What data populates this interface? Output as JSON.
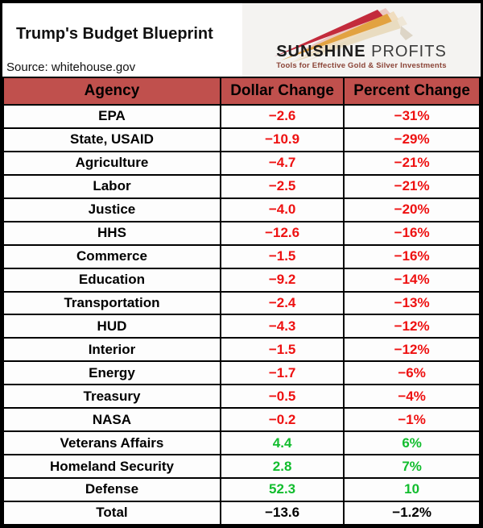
{
  "header": {
    "title": "Trump's Budget Blueprint",
    "source": "Source: whitehouse.gov",
    "logo": {
      "brand_primary": "SUNSHINE",
      "brand_secondary": " PROFITS",
      "tagline": "Tools for Effective Gold & Silver Investments"
    }
  },
  "colors": {
    "header_row_bg": "#c0504d",
    "negative_value": "#ee1111",
    "positive_value": "#12bd2e",
    "total_value": "#000000",
    "logo_panel_bg": "#f4f3f1",
    "logo_tagline": "#8b4437",
    "logo_ray_red": "#c32b3c",
    "logo_ray_gold": "#e2a241",
    "logo_ray_cream": "#e9dcc0"
  },
  "table": {
    "columns": [
      "Agency",
      "Dollar Change",
      "Percent Change"
    ],
    "rows": [
      {
        "agency": "EPA",
        "dollar": "−2.6",
        "percent": "−31%",
        "type": "cut"
      },
      {
        "agency": "State, USAID",
        "dollar": "−10.9",
        "percent": "−29%",
        "type": "cut"
      },
      {
        "agency": "Agriculture",
        "dollar": "−4.7",
        "percent": "−21%",
        "type": "cut"
      },
      {
        "agency": "Labor",
        "dollar": "−2.5",
        "percent": "−21%",
        "type": "cut"
      },
      {
        "agency": "Justice",
        "dollar": "−4.0",
        "percent": "−20%",
        "type": "cut"
      },
      {
        "agency": "HHS",
        "dollar": "−12.6",
        "percent": "−16%",
        "type": "cut"
      },
      {
        "agency": "Commerce",
        "dollar": "−1.5",
        "percent": "−16%",
        "type": "cut"
      },
      {
        "agency": "Education",
        "dollar": "−9.2",
        "percent": "−14%",
        "type": "cut"
      },
      {
        "agency": "Transportation",
        "dollar": "−2.4",
        "percent": "−13%",
        "type": "cut"
      },
      {
        "agency": "HUD",
        "dollar": "−4.3",
        "percent": "−12%",
        "type": "cut"
      },
      {
        "agency": "Interior",
        "dollar": "−1.5",
        "percent": "−12%",
        "type": "cut"
      },
      {
        "agency": "Energy",
        "dollar": "−1.7",
        "percent": "−6%",
        "type": "cut"
      },
      {
        "agency": "Treasury",
        "dollar": "−0.5",
        "percent": "−4%",
        "type": "cut"
      },
      {
        "agency": "NASA",
        "dollar": "−0.2",
        "percent": "−1%",
        "type": "cut"
      },
      {
        "agency": "Veterans Affairs",
        "dollar": "4.4",
        "percent": "6%",
        "type": "gain"
      },
      {
        "agency": "Homeland Security",
        "dollar": "2.8",
        "percent": "7%",
        "type": "gain"
      },
      {
        "agency": "Defense",
        "dollar": "52.3",
        "percent": "10",
        "type": "gain"
      },
      {
        "agency": "Total",
        "dollar": "−13.6",
        "percent": "−1.2%",
        "type": "total"
      }
    ]
  },
  "chart_data": {
    "type": "table",
    "title": "Trump's Budget Blueprint",
    "source": "whitehouse.gov",
    "columns": [
      "Agency",
      "Dollar Change",
      "Percent Change"
    ],
    "rows": [
      [
        "EPA",
        -2.6,
        -31
      ],
      [
        "State, USAID",
        -10.9,
        -29
      ],
      [
        "Agriculture",
        -4.7,
        -21
      ],
      [
        "Labor",
        -2.5,
        -21
      ],
      [
        "Justice",
        -4.0,
        -20
      ],
      [
        "HHS",
        -12.6,
        -16
      ],
      [
        "Commerce",
        -1.5,
        -16
      ],
      [
        "Education",
        -9.2,
        -14
      ],
      [
        "Transportation",
        -2.4,
        -13
      ],
      [
        "HUD",
        -4.3,
        -12
      ],
      [
        "Interior",
        -1.5,
        -12
      ],
      [
        "Energy",
        -1.7,
        -6
      ],
      [
        "Treasury",
        -0.5,
        -4
      ],
      [
        "NASA",
        -0.2,
        -1
      ],
      [
        "Veterans Affairs",
        4.4,
        6
      ],
      [
        "Homeland Security",
        2.8,
        7
      ],
      [
        "Defense",
        52.3,
        10
      ],
      [
        "Total",
        -13.6,
        -1.2
      ]
    ]
  }
}
